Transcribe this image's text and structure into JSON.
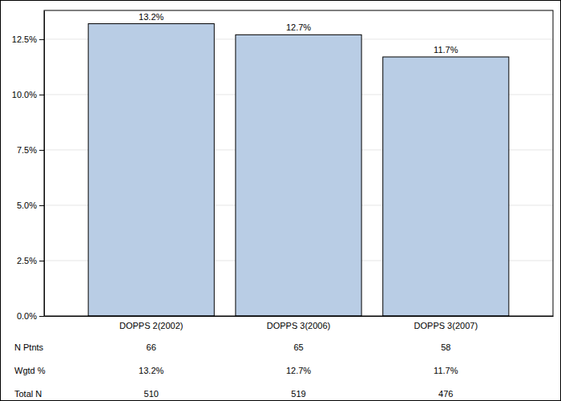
{
  "chart_data": {
    "type": "bar",
    "categories": [
      "DOPPS 2(2002)",
      "DOPPS 3(2006)",
      "DOPPS 3(2007)"
    ],
    "values": [
      13.2,
      12.7,
      11.7
    ],
    "value_labels": [
      "13.2%",
      "12.7%",
      "11.7%"
    ],
    "color": "#b9cde5",
    "ylim": [
      0,
      13.8
    ],
    "yticks": [
      {
        "value": 0,
        "label": "0.0%"
      },
      {
        "value": 2.5,
        "label": "2.5%"
      },
      {
        "value": 5,
        "label": "5.0%"
      },
      {
        "value": 7.5,
        "label": "7.5%"
      },
      {
        "value": 10,
        "label": "10.0%"
      },
      {
        "value": 12.5,
        "label": "12.5%"
      }
    ],
    "grid": true,
    "data_labels": true
  },
  "table": {
    "rows": [
      {
        "label": "N Ptnts",
        "cells": [
          "66",
          "65",
          "58"
        ]
      },
      {
        "label": "Wgtd %",
        "cells": [
          "13.2%",
          "12.7%",
          "11.7%"
        ]
      },
      {
        "label": "Total N",
        "cells": [
          "510",
          "519",
          "476"
        ]
      }
    ]
  }
}
